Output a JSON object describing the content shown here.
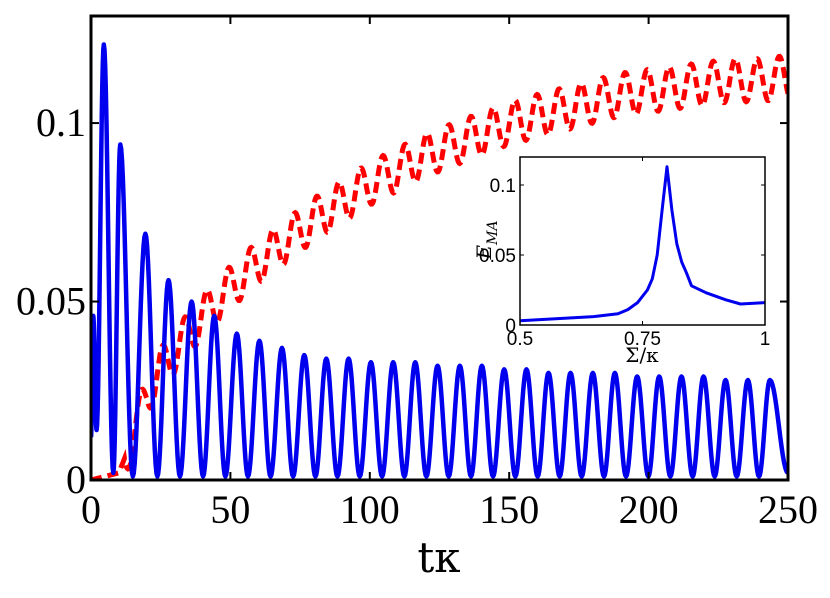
{
  "chart_data": [
    {
      "type": "line",
      "title": "",
      "xlabel": "tκ",
      "ylabel": "",
      "xlim": [
        0,
        250
      ],
      "ylim": [
        0,
        0.13
      ],
      "grid": false,
      "x_ticks": [
        0,
        50,
        100,
        150,
        200,
        250
      ],
      "x_tick_labels": [
        "0",
        "50",
        "100",
        "150",
        "200",
        "250"
      ],
      "y_ticks": [
        0,
        0.05,
        0.1
      ],
      "y_tick_labels": [
        "0",
        "0.05",
        "0.1"
      ],
      "series": [
        {
          "name": "blue solid",
          "color": "#0000ee",
          "style": "solid",
          "peak_times": [
            0.8,
            4.6,
            10.5,
            19.5,
            27.8,
            36.1,
            44.2,
            52.3,
            60.4,
            68.5,
            76.5,
            84.4,
            92.4,
            100.4,
            108.4,
            116.3,
            124.3,
            132.3,
            140.2,
            148.2,
            156.2,
            164.1,
            172.0,
            180.0,
            187.9,
            195.9,
            203.8,
            211.8,
            219.7,
            227.6,
            235.6,
            243.5
          ],
          "peak_values": [
            0.046,
            0.122,
            0.094,
            0.069,
            0.056,
            0.05,
            0.046,
            0.041,
            0.039,
            0.037,
            0.035,
            0.034,
            0.034,
            0.033,
            0.033,
            0.033,
            0.032,
            0.032,
            0.032,
            0.031,
            0.031,
            0.03,
            0.03,
            0.03,
            0.03,
            0.029,
            0.029,
            0.029,
            0.029,
            0.028,
            0.028,
            0.028
          ],
          "trough_times": [
            2.0,
            8.0,
            15.0,
            23.8,
            31.9,
            40.2,
            48.2,
            56.3,
            64.4,
            72.5,
            80.5,
            88.4,
            96.4,
            104.4,
            112.4,
            120.3,
            128.3,
            136.3,
            144.2,
            152.2,
            160.2,
            168.1,
            176.0,
            184.0,
            191.9,
            199.9,
            207.8,
            215.8,
            223.7,
            231.6,
            239.6
          ],
          "trough_values": [
            0.014,
            0.002,
            0.001,
            0.001,
            0.001,
            0.001,
            0.001,
            0.001,
            0.001,
            0.001,
            0.001,
            0.001,
            0.001,
            0.001,
            0.001,
            0.001,
            0.001,
            0.001,
            0.001,
            0.001,
            0.001,
            0.001,
            0.001,
            0.001,
            0.001,
            0.001,
            0.001,
            0.001,
            0.001,
            0.001,
            0.001
          ]
        },
        {
          "name": "red dashed",
          "color": "#ff0000",
          "style": "dashed",
          "x": [
            0,
            10,
            15,
            20,
            25,
            30,
            35,
            40,
            50,
            60,
            70,
            80,
            90,
            100,
            110,
            120,
            130,
            140,
            150,
            160,
            170,
            180,
            190,
            200,
            210,
            220,
            230,
            240,
            250
          ],
          "values": [
            0.0,
            0.002,
            0.012,
            0.024,
            0.031,
            0.036,
            0.041,
            0.046,
            0.054,
            0.061,
            0.067,
            0.073,
            0.078,
            0.083,
            0.087,
            0.091,
            0.094,
            0.097,
            0.1,
            0.102,
            0.104,
            0.106,
            0.108,
            0.109,
            0.11,
            0.111,
            0.112,
            0.112,
            0.113
          ],
          "oscillation_amplitude": 0.006,
          "oscillation_period": 7.9
        }
      ]
    },
    {
      "type": "line",
      "title": "",
      "xlabel": "Σ/κ",
      "ylabel": "E_MA",
      "ylabel_main": "E",
      "ylabel_sub": "MA",
      "xlim": [
        0.5,
        1.0
      ],
      "ylim": [
        0,
        0.12
      ],
      "x_ticks": [
        0.5,
        0.75,
        1.0
      ],
      "x_tick_labels": [
        "0.5",
        "0.75",
        "1"
      ],
      "y_ticks": [
        0,
        0.05,
        0.1
      ],
      "y_tick_labels": [
        "0",
        "0.05",
        "0.1"
      ],
      "series": [
        {
          "name": "inset",
          "color": "#0000ee",
          "style": "solid",
          "x": [
            0.5,
            0.6,
            0.65,
            0.7,
            0.72,
            0.74,
            0.76,
            0.77,
            0.78,
            0.79,
            0.8,
            0.81,
            0.82,
            0.83,
            0.84,
            0.85,
            0.88,
            0.92,
            0.95,
            1.0
          ],
          "values": [
            0.003,
            0.005,
            0.006,
            0.008,
            0.011,
            0.016,
            0.025,
            0.033,
            0.05,
            0.082,
            0.113,
            0.082,
            0.058,
            0.045,
            0.037,
            0.028,
            0.023,
            0.018,
            0.015,
            0.016
          ]
        }
      ]
    }
  ]
}
